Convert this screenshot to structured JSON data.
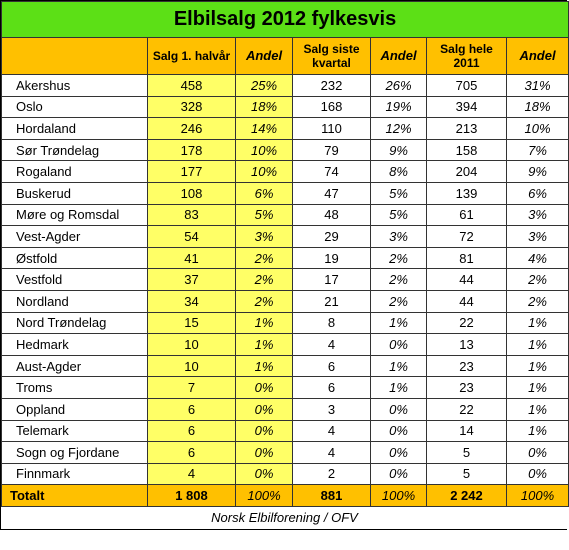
{
  "title": "Elbilsalg 2012 fylkesvis",
  "headers": {
    "county": "",
    "h1": "Salg 1. halvår",
    "andel1": "Andel",
    "quarter_line1": "Salg siste",
    "quarter_line2": "kvartal",
    "andel2": "Andel",
    "year_line1": "Salg hele",
    "year_line2": "2011",
    "andel3": "Andel"
  },
  "rows": [
    {
      "county": "Akershus",
      "h1": "458",
      "a1": "25%",
      "q": "232",
      "a2": "26%",
      "y": "705",
      "a3": "31%"
    },
    {
      "county": "Oslo",
      "h1": "328",
      "a1": "18%",
      "q": "168",
      "a2": "19%",
      "y": "394",
      "a3": "18%"
    },
    {
      "county": "Hordaland",
      "h1": "246",
      "a1": "14%",
      "q": "110",
      "a2": "12%",
      "y": "213",
      "a3": "10%"
    },
    {
      "county": "Sør Trøndelag",
      "h1": "178",
      "a1": "10%",
      "q": "79",
      "a2": "9%",
      "y": "158",
      "a3": "7%"
    },
    {
      "county": "Rogaland",
      "h1": "177",
      "a1": "10%",
      "q": "74",
      "a2": "8%",
      "y": "204",
      "a3": "9%"
    },
    {
      "county": "Buskerud",
      "h1": "108",
      "a1": "6%",
      "q": "47",
      "a2": "5%",
      "y": "139",
      "a3": "6%"
    },
    {
      "county": "Møre og Romsdal",
      "h1": "83",
      "a1": "5%",
      "q": "48",
      "a2": "5%",
      "y": "61",
      "a3": "3%"
    },
    {
      "county": "Vest-Agder",
      "h1": "54",
      "a1": "3%",
      "q": "29",
      "a2": "3%",
      "y": "72",
      "a3": "3%"
    },
    {
      "county": "Østfold",
      "h1": "41",
      "a1": "2%",
      "q": "19",
      "a2": "2%",
      "y": "81",
      "a3": "4%"
    },
    {
      "county": "Vestfold",
      "h1": "37",
      "a1": "2%",
      "q": "17",
      "a2": "2%",
      "y": "44",
      "a3": "2%"
    },
    {
      "county": "Nordland",
      "h1": "34",
      "a1": "2%",
      "q": "21",
      "a2": "2%",
      "y": "44",
      "a3": "2%"
    },
    {
      "county": "Nord Trøndelag",
      "h1": "15",
      "a1": "1%",
      "q": "8",
      "a2": "1%",
      "y": "22",
      "a3": "1%"
    },
    {
      "county": "Hedmark",
      "h1": "10",
      "a1": "1%",
      "q": "4",
      "a2": "0%",
      "y": "13",
      "a3": "1%"
    },
    {
      "county": "Aust-Agder",
      "h1": "10",
      "a1": "1%",
      "q": "6",
      "a2": "1%",
      "y": "23",
      "a3": "1%"
    },
    {
      "county": "Troms",
      "h1": "7",
      "a1": "0%",
      "q": "6",
      "a2": "1%",
      "y": "23",
      "a3": "1%"
    },
    {
      "county": "Oppland",
      "h1": "6",
      "a1": "0%",
      "q": "3",
      "a2": "0%",
      "y": "22",
      "a3": "1%"
    },
    {
      "county": "Telemark",
      "h1": "6",
      "a1": "0%",
      "q": "4",
      "a2": "0%",
      "y": "14",
      "a3": "1%"
    },
    {
      "county": "Sogn og Fjordane",
      "h1": "6",
      "a1": "0%",
      "q": "4",
      "a2": "0%",
      "y": "5",
      "a3": "0%"
    },
    {
      "county": "Finnmark",
      "h1": "4",
      "a1": "0%",
      "q": "2",
      "a2": "0%",
      "y": "5",
      "a3": "0%"
    }
  ],
  "total": {
    "county": "Totalt",
    "h1": "1 808",
    "a1": "100%",
    "q": "881",
    "a2": "100%",
    "y": "2 242",
    "a3": "100%"
  },
  "source": "Norsk Elbilforening / OFV",
  "colors": {
    "title_bg": "#5ce016",
    "header_bg": "#ffc000",
    "highlight_bg": "#ffff66",
    "white": "#ffffff"
  }
}
